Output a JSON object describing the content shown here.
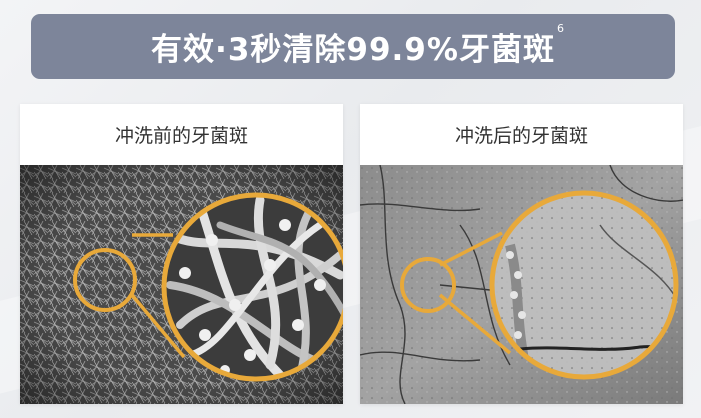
{
  "banner": {
    "title": "有效·3秒清除99.9%牙菌斑",
    "footnote": "6",
    "background_color": "#7d859a"
  },
  "panels": [
    {
      "label": "冲洗前的牙菌斑",
      "image": "sem-bacteria-dense-filaments"
    },
    {
      "label": "冲洗后的牙菌斑",
      "image": "sem-tooth-surface-clean"
    }
  ],
  "accent_color": "#e8a93a"
}
